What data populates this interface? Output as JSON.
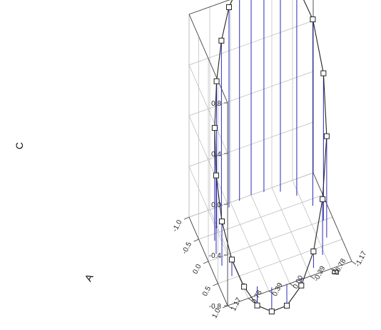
{
  "chart_data": {
    "type": "scatter",
    "subtype": "3d-scatter-with-drop-lines",
    "title": "",
    "xlabel": "A",
    "ylabel": "B",
    "zlabel": "C",
    "xlim": [
      -1.0,
      1.0
    ],
    "ylim": [
      -1.17,
      1.17
    ],
    "zlim": [
      -0.8,
      0.8
    ],
    "x_ticks": [
      "-1.0",
      "-0.5",
      "0.0",
      "0.5",
      "1.0"
    ],
    "y_ticks": [
      "-1.17",
      "-0.78",
      "-0.39",
      "0.00",
      "0.39",
      "0.78",
      "1.17"
    ],
    "z_ticks": [
      "0.8",
      "0.4",
      "0.0",
      "-0.4",
      "-0.8"
    ],
    "grid": true,
    "connected_line": true,
    "drop_lines": true,
    "colors": {
      "drop_line": "#2a2ab8",
      "curve": "#222222",
      "marker_fill": "#ffffff",
      "grid": "#b8b8b8"
    },
    "points": [
      {
        "A": -1.0,
        "B": 0.0,
        "C": 0.97
      },
      {
        "A": -0.97,
        "B": 0.23,
        "C": 0.91
      },
      {
        "A": -0.91,
        "B": 0.45,
        "C": 0.78
      },
      {
        "A": -0.78,
        "B": 0.64,
        "C": 0.59
      },
      {
        "A": -0.59,
        "B": 0.8,
        "C": 0.36
      },
      {
        "A": -0.36,
        "B": 0.92,
        "C": 0.09
      },
      {
        "A": -0.09,
        "B": 0.99,
        "C": -0.18
      },
      {
        "A": 0.18,
        "B": 0.98,
        "C": -0.45
      },
      {
        "A": 0.45,
        "B": 0.89,
        "C": -0.67
      },
      {
        "A": 0.67,
        "B": 0.74,
        "C": -0.83
      },
      {
        "A": 0.83,
        "B": 0.55,
        "C": -0.95
      },
      {
        "A": 0.95,
        "B": 0.32,
        "C": -0.99
      },
      {
        "A": 0.99,
        "B": 0.05,
        "C": -0.97
      },
      {
        "A": 0.97,
        "B": -0.23,
        "C": -0.86
      },
      {
        "A": 0.86,
        "B": -0.5,
        "C": -0.67
      },
      {
        "A": 0.67,
        "B": -0.74,
        "C": -0.36
      },
      {
        "A": 0.36,
        "B": -0.93,
        "C": 0.0
      },
      {
        "A": 0.0,
        "B": -1.0,
        "C": 0.36
      },
      {
        "A": -0.36,
        "B": -0.93,
        "C": 0.67
      },
      {
        "A": -0.67,
        "B": -0.74,
        "C": 0.86
      },
      {
        "A": -0.86,
        "B": -0.5,
        "C": 0.97
      },
      {
        "A": -0.97,
        "B": -0.23,
        "C": 0.99
      }
    ]
  }
}
